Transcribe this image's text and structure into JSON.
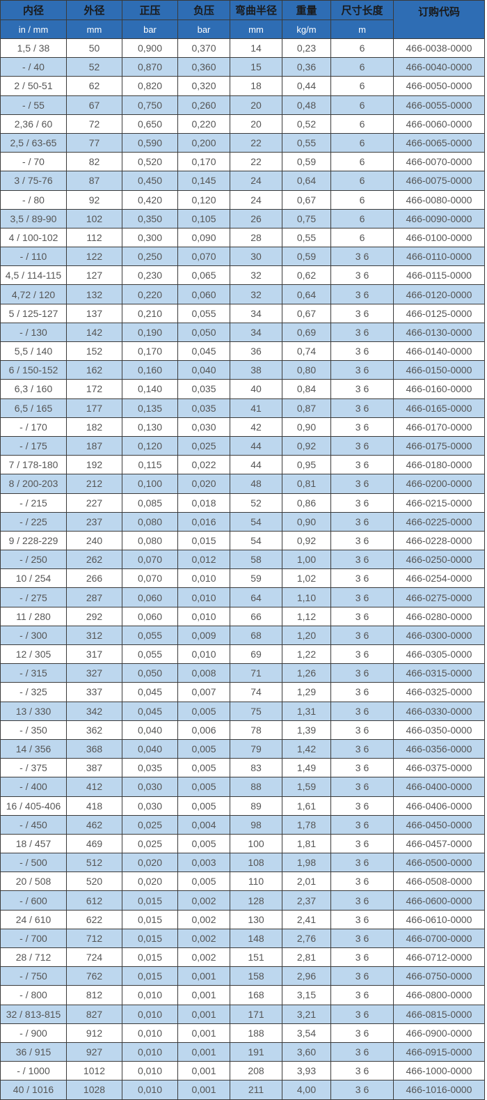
{
  "colors": {
    "header": "#2e6db4",
    "stripe": "#bdd7ee",
    "text": "#555555"
  },
  "headers": [
    "内径",
    "外径",
    "正压",
    "负压",
    "弯曲半径",
    "重量",
    "尺寸长度",
    "订购代码"
  ],
  "units": [
    "in / mm",
    "mm",
    "bar",
    "bar",
    "mm",
    "kg/m",
    "m"
  ],
  "rows": [
    [
      "1,5 / 38",
      "50",
      "0,900",
      "0,370",
      "14",
      "0,23",
      "6",
      "466-0038-0000"
    ],
    [
      "- / 40",
      "52",
      "0,870",
      "0,360",
      "15",
      "0,36",
      "6",
      "466-0040-0000"
    ],
    [
      "2 / 50-51",
      "62",
      "0,820",
      "0,320",
      "18",
      "0,44",
      "6",
      "466-0050-0000"
    ],
    [
      "- / 55",
      "67",
      "0,750",
      "0,260",
      "20",
      "0,48",
      "6",
      "466-0055-0000"
    ],
    [
      "2,36 / 60",
      "72",
      "0,650",
      "0,220",
      "20",
      "0,52",
      "6",
      "466-0060-0000"
    ],
    [
      "2,5 / 63-65",
      "77",
      "0,590",
      "0,200",
      "22",
      "0,55",
      "6",
      "466-0065-0000"
    ],
    [
      "- / 70",
      "82",
      "0,520",
      "0,170",
      "22",
      "0,59",
      "6",
      "466-0070-0000"
    ],
    [
      "3 / 75-76",
      "87",
      "0,450",
      "0,145",
      "24",
      "0,64",
      "6",
      "466-0075-0000"
    ],
    [
      "- / 80",
      "92",
      "0,420",
      "0,120",
      "24",
      "0,67",
      "6",
      "466-0080-0000"
    ],
    [
      "3,5 / 89-90",
      "102",
      "0,350",
      "0,105",
      "26",
      "0,75",
      "6",
      "466-0090-0000"
    ],
    [
      "4 / 100-102",
      "112",
      "0,300",
      "0,090",
      "28",
      "0,55",
      "6",
      "466-0100-0000"
    ],
    [
      "- / 110",
      "122",
      "0,250",
      "0,070",
      "30",
      "0,59",
      "3 6",
      "466-0110-0000"
    ],
    [
      "4,5 / 114-115",
      "127",
      "0,230",
      "0,065",
      "32",
      "0,62",
      "3 6",
      "466-0115-0000"
    ],
    [
      "4,72 / 120",
      "132",
      "0,220",
      "0,060",
      "32",
      "0,64",
      "3 6",
      "466-0120-0000"
    ],
    [
      "5 / 125-127",
      "137",
      "0,210",
      "0,055",
      "34",
      "0,67",
      "3 6",
      "466-0125-0000"
    ],
    [
      "- / 130",
      "142",
      "0,190",
      "0,050",
      "34",
      "0,69",
      "3 6",
      "466-0130-0000"
    ],
    [
      "5,5 / 140",
      "152",
      "0,170",
      "0,045",
      "36",
      "0,74",
      "3 6",
      "466-0140-0000"
    ],
    [
      "6 / 150-152",
      "162",
      "0,160",
      "0,040",
      "38",
      "0,80",
      "3 6",
      "466-0150-0000"
    ],
    [
      "6,3 / 160",
      "172",
      "0,140",
      "0,035",
      "40",
      "0,84",
      "3 6",
      "466-0160-0000"
    ],
    [
      "6,5 / 165",
      "177",
      "0,135",
      "0,035",
      "41",
      "0,87",
      "3 6",
      "466-0165-0000"
    ],
    [
      "- / 170",
      "182",
      "0,130",
      "0,030",
      "42",
      "0,90",
      "3 6",
      "466-0170-0000"
    ],
    [
      "- / 175",
      "187",
      "0,120",
      "0,025",
      "44",
      "0,92",
      "3 6",
      "466-0175-0000"
    ],
    [
      "7 / 178-180",
      "192",
      "0,115",
      "0,022",
      "44",
      "0,95",
      "3 6",
      "466-0180-0000"
    ],
    [
      "8 / 200-203",
      "212",
      "0,100",
      "0,020",
      "48",
      "0,81",
      "3 6",
      "466-0200-0000"
    ],
    [
      "- / 215",
      "227",
      "0,085",
      "0,018",
      "52",
      "0,86",
      "3 6",
      "466-0215-0000"
    ],
    [
      "- / 225",
      "237",
      "0,080",
      "0,016",
      "54",
      "0,90",
      "3 6",
      "466-0225-0000"
    ],
    [
      "9 / 228-229",
      "240",
      "0,080",
      "0,015",
      "54",
      "0,92",
      "3 6",
      "466-0228-0000"
    ],
    [
      "- / 250",
      "262",
      "0,070",
      "0,012",
      "58",
      "1,00",
      "3 6",
      "466-0250-0000"
    ],
    [
      "10 / 254",
      "266",
      "0,070",
      "0,010",
      "59",
      "1,02",
      "3 6",
      "466-0254-0000"
    ],
    [
      "- / 275",
      "287",
      "0,060",
      "0,010",
      "64",
      "1,10",
      "3 6",
      "466-0275-0000"
    ],
    [
      "11 / 280",
      "292",
      "0,060",
      "0,010",
      "66",
      "1,12",
      "3 6",
      "466-0280-0000"
    ],
    [
      "- / 300",
      "312",
      "0,055",
      "0,009",
      "68",
      "1,20",
      "3 6",
      "466-0300-0000"
    ],
    [
      "12 / 305",
      "317",
      "0,055",
      "0,010",
      "69",
      "1,22",
      "3 6",
      "466-0305-0000"
    ],
    [
      "- / 315",
      "327",
      "0,050",
      "0,008",
      "71",
      "1,26",
      "3 6",
      "466-0315-0000"
    ],
    [
      "- / 325",
      "337",
      "0,045",
      "0,007",
      "74",
      "1,29",
      "3 6",
      "466-0325-0000"
    ],
    [
      "13 / 330",
      "342",
      "0,045",
      "0,005",
      "75",
      "1,31",
      "3 6",
      "466-0330-0000"
    ],
    [
      "- / 350",
      "362",
      "0,040",
      "0,006",
      "78",
      "1,39",
      "3 6",
      "466-0350-0000"
    ],
    [
      "14 / 356",
      "368",
      "0,040",
      "0,005",
      "79",
      "1,42",
      "3 6",
      "466-0356-0000"
    ],
    [
      "- / 375",
      "387",
      "0,035",
      "0,005",
      "83",
      "1,49",
      "3 6",
      "466-0375-0000"
    ],
    [
      "- / 400",
      "412",
      "0,030",
      "0,005",
      "88",
      "1,59",
      "3 6",
      "466-0400-0000"
    ],
    [
      "16 / 405-406",
      "418",
      "0,030",
      "0,005",
      "89",
      "1,61",
      "3 6",
      "466-0406-0000"
    ],
    [
      "- / 450",
      "462",
      "0,025",
      "0,004",
      "98",
      "1,78",
      "3 6",
      "466-0450-0000"
    ],
    [
      "18 / 457",
      "469",
      "0,025",
      "0,005",
      "100",
      "1,81",
      "3 6",
      "466-0457-0000"
    ],
    [
      "- / 500",
      "512",
      "0,020",
      "0,003",
      "108",
      "1,98",
      "3 6",
      "466-0500-0000"
    ],
    [
      "20 / 508",
      "520",
      "0,020",
      "0,005",
      "110",
      "2,01",
      "3 6",
      "466-0508-0000"
    ],
    [
      "- / 600",
      "612",
      "0,015",
      "0,002",
      "128",
      "2,37",
      "3 6",
      "466-0600-0000"
    ],
    [
      "24 / 610",
      "622",
      "0,015",
      "0,002",
      "130",
      "2,41",
      "3 6",
      "466-0610-0000"
    ],
    [
      "- / 700",
      "712",
      "0,015",
      "0,002",
      "148",
      "2,76",
      "3 6",
      "466-0700-0000"
    ],
    [
      "28 / 712",
      "724",
      "0,015",
      "0,002",
      "151",
      "2,81",
      "3 6",
      "466-0712-0000"
    ],
    [
      "- / 750",
      "762",
      "0,015",
      "0,001",
      "158",
      "2,96",
      "3 6",
      "466-0750-0000"
    ],
    [
      "- / 800",
      "812",
      "0,010",
      "0,001",
      "168",
      "3,15",
      "3 6",
      "466-0800-0000"
    ],
    [
      "32 / 813-815",
      "827",
      "0,010",
      "0,001",
      "171",
      "3,21",
      "3 6",
      "466-0815-0000"
    ],
    [
      "- / 900",
      "912",
      "0,010",
      "0,001",
      "188",
      "3,54",
      "3 6",
      "466-0900-0000"
    ],
    [
      "36 / 915",
      "927",
      "0,010",
      "0,001",
      "191",
      "3,60",
      "3 6",
      "466-0915-0000"
    ],
    [
      "- / 1000",
      "1012",
      "0,010",
      "0,001",
      "208",
      "3,93",
      "3 6",
      "466-1000-0000"
    ],
    [
      "40 / 1016",
      "1028",
      "0,010",
      "0,001",
      "211",
      "4,00",
      "3 6",
      "466-1016-0000"
    ]
  ]
}
